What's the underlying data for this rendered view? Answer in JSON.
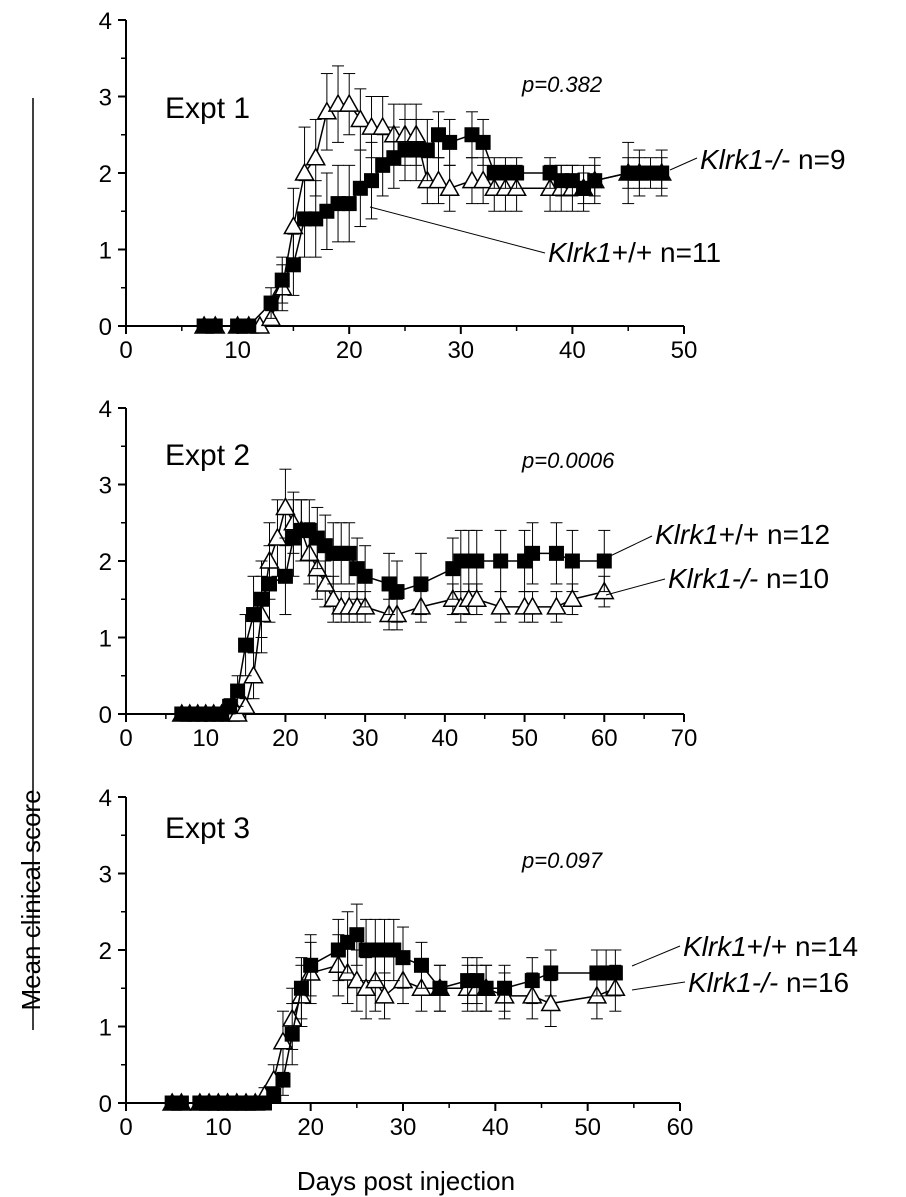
{
  "figure": {
    "ylabel": "Mean clinical score",
    "xlabel": "Days post injection"
  },
  "colors": {
    "axis": "#000000",
    "ko_fill": "#ffffff",
    "wt_fill": "#000000"
  },
  "chart_data": [
    {
      "type": "line",
      "title": "Expt 1",
      "pvalue": "p=0.382",
      "xlim": [
        0,
        50
      ],
      "ylim": [
        0,
        4
      ],
      "xticks": [
        "0",
        "10",
        "20",
        "30",
        "40",
        "50"
      ],
      "yticks": [
        "0",
        "1",
        "2",
        "3",
        "4"
      ],
      "series": [
        {
          "name": "Klrk1+/+ n=11",
          "name_italic": "Klrk1",
          "name_rest": "+/+ n=11",
          "marker": "square",
          "x": [
            7,
            8,
            10,
            11,
            13,
            14,
            15,
            16,
            17,
            18,
            19,
            20,
            21,
            22,
            23,
            24,
            25,
            26,
            27,
            28,
            29,
            31,
            32,
            33,
            34,
            35,
            38,
            39,
            40,
            41,
            42,
            45,
            46,
            47,
            48
          ],
          "y": [
            0,
            0,
            0,
            0,
            0.3,
            0.6,
            0.8,
            1.4,
            1.4,
            1.5,
            1.6,
            1.6,
            1.8,
            1.9,
            2.1,
            2.2,
            2.3,
            2.3,
            2.3,
            2.5,
            2.4,
            2.5,
            2.4,
            2.0,
            2.0,
            2.0,
            2.0,
            1.9,
            1.9,
            1.8,
            1.9,
            2.0,
            2.0,
            2.0,
            2.0
          ],
          "err": [
            0,
            0,
            0,
            0,
            0.2,
            0.3,
            0.4,
            0.5,
            0.5,
            0.5,
            0.5,
            0.5,
            0.5,
            0.5,
            0.4,
            0.4,
            0.4,
            0.4,
            0.4,
            0.3,
            0.3,
            0.3,
            0.3,
            0.2,
            0.2,
            0.2,
            0.2,
            0.2,
            0.2,
            0.2,
            0.2,
            0.2,
            0.2,
            0.2,
            0.2
          ]
        },
        {
          "name": "Klrk1-/- n=9",
          "name_italic": "Klrk1-/-",
          "name_rest": " n=9",
          "marker": "triangle",
          "x": [
            7,
            8,
            10,
            11,
            12,
            13,
            14,
            15,
            16,
            17,
            18,
            19,
            20,
            21,
            22,
            23,
            24,
            25,
            26,
            27,
            28,
            29,
            31,
            32,
            33,
            34,
            35,
            38,
            39,
            40,
            41,
            42,
            45,
            46,
            48
          ],
          "y": [
            0,
            0,
            0,
            0,
            0,
            0.1,
            0.5,
            1.3,
            2.0,
            2.2,
            2.8,
            2.9,
            2.9,
            2.7,
            2.6,
            2.6,
            2.5,
            2.5,
            2.5,
            1.9,
            1.9,
            1.8,
            1.9,
            1.9,
            1.8,
            1.8,
            1.8,
            1.8,
            1.8,
            1.8,
            1.8,
            1.9,
            2.0,
            2.0,
            2.0
          ],
          "err": [
            0,
            0,
            0,
            0,
            0,
            0.1,
            0.3,
            0.5,
            0.6,
            0.5,
            0.5,
            0.5,
            0.4,
            0.4,
            0.4,
            0.4,
            0.4,
            0.4,
            0.4,
            0.3,
            0.3,
            0.3,
            0.3,
            0.3,
            0.3,
            0.3,
            0.3,
            0.3,
            0.3,
            0.3,
            0.3,
            0.3,
            0.4,
            0.3,
            0.3
          ]
        }
      ]
    },
    {
      "type": "line",
      "title": "Expt 2",
      "pvalue": "p=0.0006",
      "xlim": [
        0,
        70
      ],
      "ylim": [
        0,
        4
      ],
      "xticks": [
        "0",
        "10",
        "20",
        "30",
        "40",
        "50",
        "60",
        "70"
      ],
      "yticks": [
        "0",
        "1",
        "2",
        "3",
        "4"
      ],
      "series": [
        {
          "name": "Klrk1+/+ n=12",
          "name_italic": "Klrk1",
          "name_rest": "+/+ n=12",
          "marker": "square",
          "x": [
            7,
            8,
            9,
            10,
            11,
            12,
            13,
            14,
            15,
            16,
            17,
            18,
            20,
            21,
            22,
            23,
            24,
            25,
            26,
            27,
            28,
            29,
            30,
            33,
            34,
            37,
            41,
            42,
            43,
            44,
            47,
            50,
            51,
            54,
            56,
            60
          ],
          "y": [
            0,
            0,
            0,
            0,
            0,
            0,
            0.1,
            0.3,
            0.9,
            1.3,
            1.5,
            1.7,
            1.8,
            2.3,
            2.4,
            2.4,
            2.3,
            2.2,
            2.1,
            2.1,
            2.1,
            1.9,
            1.8,
            1.7,
            1.6,
            1.7,
            1.9,
            2.0,
            2.0,
            2.0,
            2.0,
            2.0,
            2.1,
            2.1,
            2.0,
            2.0
          ],
          "err": [
            0,
            0,
            0,
            0,
            0,
            0,
            0.1,
            0.2,
            0.4,
            0.5,
            0.5,
            0.5,
            0.5,
            0.5,
            0.4,
            0.4,
            0.4,
            0.4,
            0.4,
            0.4,
            0.4,
            0.4,
            0.4,
            0.4,
            0.4,
            0.4,
            0.4,
            0.4,
            0.4,
            0.4,
            0.4,
            0.4,
            0.4,
            0.4,
            0.4,
            0.4
          ]
        },
        {
          "name": "Klrk1-/- n=10",
          "name_italic": "Klrk1-/-",
          "name_rest": " n=10",
          "marker": "triangle",
          "x": [
            7,
            8,
            9,
            10,
            11,
            12,
            13,
            14,
            15,
            16,
            17,
            18,
            19,
            20,
            21,
            22,
            23,
            24,
            25,
            26,
            27,
            28,
            29,
            30,
            33,
            34,
            37,
            41,
            42,
            43,
            44,
            47,
            50,
            51,
            54,
            56,
            60
          ],
          "y": [
            0,
            0,
            0,
            0,
            0,
            0,
            0,
            0,
            0.1,
            0.5,
            1.3,
            2.0,
            2.3,
            2.7,
            2.5,
            2.4,
            2.1,
            1.9,
            1.7,
            1.5,
            1.4,
            1.4,
            1.4,
            1.4,
            1.3,
            1.3,
            1.4,
            1.5,
            1.4,
            1.5,
            1.5,
            1.4,
            1.4,
            1.4,
            1.4,
            1.5,
            1.6
          ],
          "err": [
            0,
            0,
            0,
            0,
            0,
            0,
            0,
            0,
            0.1,
            0.3,
            0.5,
            0.5,
            0.5,
            0.5,
            0.4,
            0.4,
            0.4,
            0.4,
            0.3,
            0.3,
            0.2,
            0.2,
            0.2,
            0.2,
            0.2,
            0.2,
            0.2,
            0.2,
            0.2,
            0.2,
            0.2,
            0.2,
            0.2,
            0.2,
            0.2,
            0.2,
            0.2
          ]
        }
      ]
    },
    {
      "type": "line",
      "title": "Expt 3",
      "pvalue": "p=0.097",
      "xlim": [
        0,
        60
      ],
      "ylim": [
        0,
        4
      ],
      "xticks": [
        "0",
        "10",
        "20",
        "30",
        "40",
        "50",
        "60"
      ],
      "yticks": [
        "0",
        "1",
        "2",
        "3",
        "4"
      ],
      "series": [
        {
          "name": "Klrk1+/+ n=14",
          "name_italic": "Klrk1",
          "name_rest": "+/+ n=14",
          "marker": "square",
          "x": [
            5,
            6,
            8,
            9,
            10,
            11,
            12,
            13,
            14,
            15,
            16,
            17,
            18,
            19,
            20,
            23,
            24,
            25,
            26,
            27,
            28,
            29,
            30,
            32,
            34,
            37,
            38,
            39,
            41,
            44,
            46,
            51,
            52,
            53
          ],
          "y": [
            0,
            0,
            0,
            0,
            0,
            0,
            0,
            0,
            0,
            0,
            0.1,
            0.3,
            0.9,
            1.5,
            1.8,
            2.0,
            2.1,
            2.2,
            2.0,
            2.0,
            2.0,
            2.0,
            1.9,
            1.8,
            1.5,
            1.6,
            1.6,
            1.5,
            1.5,
            1.6,
            1.7,
            1.7,
            1.7,
            1.7
          ],
          "err": [
            0,
            0,
            0,
            0,
            0,
            0,
            0,
            0,
            0,
            0,
            0.1,
            0.2,
            0.4,
            0.4,
            0.4,
            0.4,
            0.4,
            0.4,
            0.4,
            0.4,
            0.4,
            0.4,
            0.4,
            0.3,
            0.3,
            0.3,
            0.3,
            0.3,
            0.3,
            0.3,
            0.3,
            0.3,
            0.3,
            0.3
          ]
        },
        {
          "name": "Klrk1-/- n=16",
          "name_italic": "Klrk1-/-",
          "name_rest": " n=16",
          "marker": "triangle",
          "x": [
            5,
            6,
            8,
            9,
            10,
            11,
            12,
            13,
            14,
            15,
            16,
            17,
            18,
            19,
            20,
            23,
            24,
            25,
            26,
            27,
            28,
            30,
            32,
            34,
            37,
            38,
            39,
            41,
            44,
            46,
            51,
            53
          ],
          "y": [
            0,
            0,
            0,
            0,
            0,
            0,
            0,
            0,
            0,
            0.1,
            0.3,
            0.8,
            1.1,
            1.4,
            1.7,
            1.8,
            1.7,
            1.6,
            1.5,
            1.6,
            1.4,
            1.6,
            1.5,
            1.5,
            1.5,
            1.5,
            1.5,
            1.4,
            1.4,
            1.3,
            1.4,
            1.5
          ],
          "err": [
            0,
            0,
            0,
            0,
            0,
            0,
            0,
            0,
            0,
            0.1,
            0.2,
            0.4,
            0.4,
            0.4,
            0.4,
            0.4,
            0.4,
            0.4,
            0.4,
            0.4,
            0.3,
            0.3,
            0.3,
            0.3,
            0.3,
            0.3,
            0.3,
            0.3,
            0.3,
            0.3,
            0.3,
            0.3
          ]
        }
      ]
    }
  ]
}
